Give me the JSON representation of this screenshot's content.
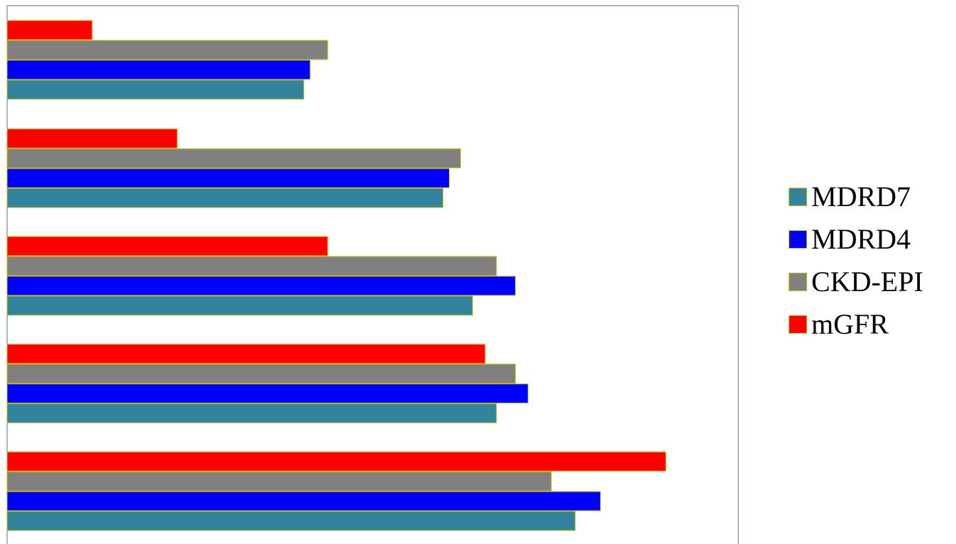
{
  "chart_data": {
    "type": "bar",
    "orientation": "horizontal",
    "categories": [
      "",
      "",
      "",
      "",
      ""
    ],
    "series": [
      {
        "name": "MDRD7",
        "color": "#31849b",
        "values": [
          808,
          696,
          662,
          620,
          422
        ]
      },
      {
        "name": "MDRD4",
        "color": "#0000ff",
        "values": [
          844,
          741,
          723,
          629,
          431
        ]
      },
      {
        "name": "CKD-EPI",
        "color": "#808080",
        "values": [
          774,
          723,
          696,
          645,
          456
        ]
      },
      {
        "name": "mGFR",
        "color": "#ff0000",
        "values": [
          937,
          680,
          456,
          242,
          121
        ]
      }
    ],
    "xlim": [
      0,
      1040
    ],
    "grid": false,
    "axis_ticks_visible": false,
    "legend_position": "right",
    "title": "",
    "xlabel": "",
    "ylabel": "",
    "bar_outline_color": "#c8c000",
    "plot_border_color": "#4f6f9f"
  }
}
